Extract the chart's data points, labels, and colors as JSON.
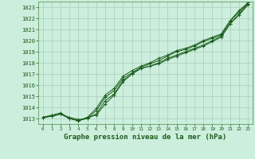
{
  "title": "Graphe pression niveau de la mer (hPa)",
  "bg_color": "#cceedd",
  "grid_color": "#aaccbb",
  "line_color": "#1a5c1a",
  "spine_color": "#4a8c4a",
  "xlim": [
    -0.5,
    23.5
  ],
  "ylim": [
    1012.5,
    1023.5
  ],
  "yticks": [
    1013,
    1014,
    1015,
    1016,
    1017,
    1018,
    1019,
    1020,
    1021,
    1022,
    1023
  ],
  "xticks": [
    0,
    1,
    2,
    3,
    4,
    5,
    6,
    7,
    8,
    9,
    10,
    11,
    12,
    13,
    14,
    15,
    16,
    17,
    18,
    19,
    20,
    21,
    22,
    23
  ],
  "xlabel_fontsize": 6.5,
  "ylabel_fontsize": 5.0,
  "xtick_fontsize": 4.2,
  "series": [
    [
      1013.1,
      1013.2,
      1013.4,
      1013.0,
      1012.8,
      1013.1,
      1013.3,
      1014.3,
      1015.1,
      1016.3,
      1017.0,
      1017.5,
      1017.7,
      1017.9,
      1018.3,
      1018.6,
      1018.9,
      1019.2,
      1019.5,
      1019.9,
      1020.3,
      1021.5,
      1022.4,
      1023.3
    ],
    [
      1013.1,
      1013.2,
      1013.4,
      1013.0,
      1012.8,
      1013.0,
      1013.4,
      1014.6,
      1015.2,
      1016.4,
      1017.0,
      1017.5,
      1017.7,
      1018.0,
      1018.4,
      1018.7,
      1019.0,
      1019.3,
      1019.6,
      1020.0,
      1020.4,
      1021.5,
      1022.3,
      1023.2
    ],
    [
      1013.1,
      1013.2,
      1013.4,
      1013.1,
      1012.9,
      1013.0,
      1013.7,
      1014.9,
      1015.5,
      1016.6,
      1017.1,
      1017.6,
      1017.9,
      1018.2,
      1018.6,
      1019.0,
      1019.2,
      1019.5,
      1019.9,
      1020.2,
      1020.5,
      1021.7,
      1022.6,
      1023.3
    ],
    [
      1013.1,
      1013.3,
      1013.5,
      1013.0,
      1012.8,
      1013.1,
      1013.9,
      1015.1,
      1015.7,
      1016.8,
      1017.3,
      1017.7,
      1018.0,
      1018.4,
      1018.7,
      1019.1,
      1019.3,
      1019.6,
      1020.0,
      1020.3,
      1020.6,
      1021.8,
      1022.7,
      1023.4
    ]
  ]
}
